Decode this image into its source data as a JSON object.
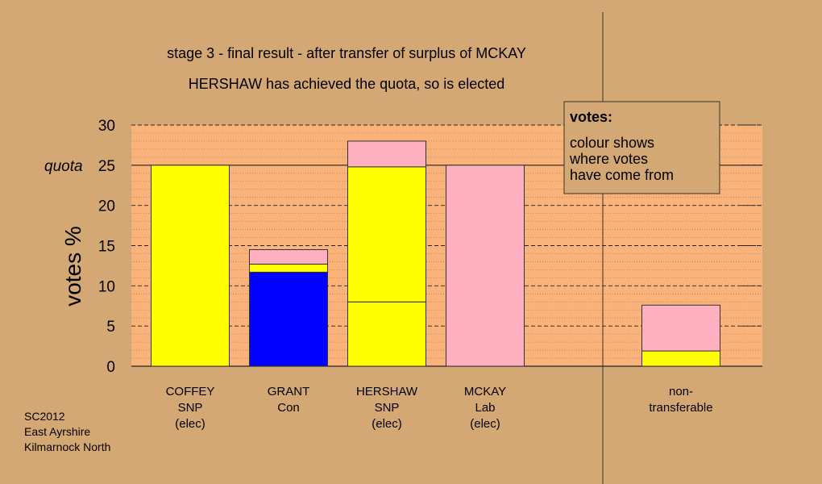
{
  "chart_data": {
    "type": "bar",
    "title": "stage 3 - final result - after transfer of surplus of MCKAY",
    "subtitle": "HERSHAW has achieved the quota, so is elected",
    "ylabel": "votes %",
    "ylim": [
      0,
      30
    ],
    "yticks": [
      "0",
      "5",
      "10",
      "15",
      "20",
      "25",
      "30"
    ],
    "quota_label": "quota",
    "quota_value": 25,
    "grid": true,
    "legend": {
      "placement": "top-right",
      "title": "votes:",
      "lines": [
        "colour shows",
        "where votes",
        "have come from"
      ]
    },
    "categories": [
      {
        "lines": [
          "COFFEY",
          "SNP",
          "(elec)"
        ],
        "segments": [
          {
            "value": 25,
            "color": "#ffff00"
          }
        ]
      },
      {
        "lines": [
          "GRANT",
          "Con"
        ],
        "segments": [
          {
            "value": 11.7,
            "color": "#0000ff"
          },
          {
            "value": 1.0,
            "color": "#ffff00"
          },
          {
            "value": 1.8,
            "color": "#ffb0c0"
          }
        ]
      },
      {
        "lines": [
          "HERSHAW",
          "SNP",
          "(elec)"
        ],
        "segments": [
          {
            "value": 8.0,
            "color": "#ffff00"
          },
          {
            "value": 16.8,
            "color": "#ffff00"
          },
          {
            "value": 3.2,
            "color": "#ffb0c0"
          }
        ]
      },
      {
        "lines": [
          "MCKAY",
          "Lab",
          "(elec)"
        ],
        "segments": [
          {
            "value": 25,
            "color": "#ffb0c0"
          }
        ]
      },
      {
        "lines": [
          "non-",
          "transferable"
        ],
        "segments": [
          {
            "value": 1.9,
            "color": "#ffff00"
          },
          {
            "value": 5.7,
            "color": "#ffb0c0"
          }
        ]
      }
    ]
  },
  "footer": {
    "lines": [
      "SC2012",
      "East Ayrshire",
      "Kilmarnock North"
    ]
  },
  "colors": {
    "background": "#d4a874",
    "plot_background": "#f9b37a"
  }
}
